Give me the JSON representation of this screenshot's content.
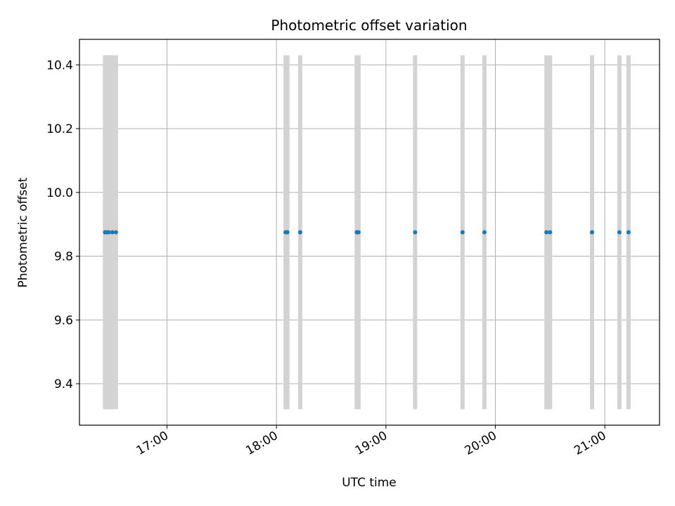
{
  "chart_data": {
    "type": "scatter",
    "title": "Photometric offset variation",
    "xlabel": "UTC time",
    "ylabel": "Photometric offset",
    "x_axis_kind": "time",
    "xlim": [
      "16:12",
      "21:30"
    ],
    "ylim": [
      9.27,
      10.48
    ],
    "xticks": [
      {
        "time": "17:00",
        "label": "17:00"
      },
      {
        "time": "18:00",
        "label": "18:00"
      },
      {
        "time": "19:00",
        "label": "19:00"
      },
      {
        "time": "20:00",
        "label": "20:00"
      },
      {
        "time": "21:00",
        "label": "21:00"
      }
    ],
    "yticks": [
      {
        "value": 9.4,
        "label": "9.4"
      },
      {
        "value": 9.6,
        "label": "9.6"
      },
      {
        "value": 9.8,
        "label": "9.8"
      },
      {
        "value": 10.0,
        "label": "10.0"
      },
      {
        "value": 10.2,
        "label": "10.2"
      },
      {
        "value": 10.4,
        "label": "10.4"
      }
    ],
    "grid": true,
    "series": [
      {
        "color": "#1f77b4",
        "points": [
          {
            "x": "16:26",
            "y": 9.875
          },
          {
            "x": "16:27",
            "y": 9.875
          },
          {
            "x": "16:28",
            "y": 9.875
          },
          {
            "x": "16:30",
            "y": 9.875
          },
          {
            "x": "16:32",
            "y": 9.875
          },
          {
            "x": "18:05",
            "y": 9.875
          },
          {
            "x": "18:06",
            "y": 9.875
          },
          {
            "x": "18:13",
            "y": 9.875
          },
          {
            "x": "18:44",
            "y": 9.875
          },
          {
            "x": "18:45",
            "y": 9.875
          },
          {
            "x": "19:16",
            "y": 9.875
          },
          {
            "x": "19:42",
            "y": 9.875
          },
          {
            "x": "19:54",
            "y": 9.875
          },
          {
            "x": "20:28",
            "y": 9.875
          },
          {
            "x": "20:30",
            "y": 9.875
          },
          {
            "x": "20:53",
            "y": 9.875
          },
          {
            "x": "21:08",
            "y": 9.875
          },
          {
            "x": "21:13",
            "y": 9.875
          }
        ]
      }
    ],
    "vertical_bands": {
      "color": "#d3d3d3",
      "y_range": [
        9.32,
        10.43
      ],
      "times": [
        "16:26",
        "16:27",
        "16:28",
        "16:30",
        "16:32",
        "18:05",
        "18:06",
        "18:13",
        "18:44",
        "18:45",
        "19:16",
        "19:42",
        "19:54",
        "20:28",
        "20:30",
        "20:53",
        "21:08",
        "21:13"
      ]
    }
  }
}
